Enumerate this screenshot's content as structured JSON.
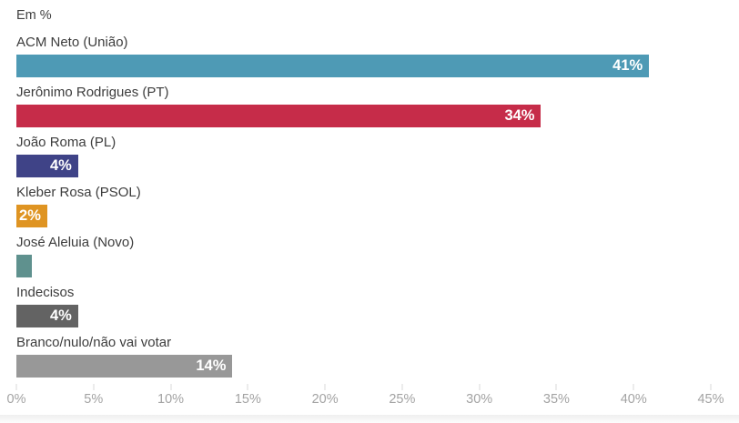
{
  "chart_data": {
    "type": "bar",
    "orientation": "horizontal",
    "title": "Em %",
    "xlabel": "",
    "ylabel": "",
    "unit": "%",
    "xlim": [
      0,
      45
    ],
    "grid": false,
    "legend": false,
    "categories": [
      "ACM Neto (União)",
      "Jerônimo Rodrigues (PT)",
      "João Roma (PL)",
      "Kleber Rosa (PSOL)",
      "José Aleluia (Novo)",
      "Indecisos",
      "Branco/nulo/não vai votar"
    ],
    "values": [
      41,
      34,
      4,
      2,
      1,
      4,
      14
    ],
    "value_labels": [
      "41%",
      "34%",
      "4%",
      "2%",
      "",
      "4%",
      "14%"
    ],
    "bar_colors": [
      "#4e9ab5",
      "#c62c49",
      "#3f4387",
      "#df9422",
      "#5f918e",
      "#636363",
      "#989898"
    ],
    "x_ticks": [
      "0%",
      "5%",
      "10%",
      "15%",
      "20%",
      "25%",
      "30%",
      "35%",
      "40%",
      "45%"
    ],
    "x_tick_values": [
      0,
      5,
      10,
      15,
      20,
      25,
      30,
      35,
      40,
      45
    ]
  },
  "style_colors": {
    "background": "#ffffff",
    "category_text": "#3c3c3c",
    "value_text": "#ffffff",
    "axis_text": "#a3a3a3",
    "tick_line": "#d8d8d8"
  }
}
